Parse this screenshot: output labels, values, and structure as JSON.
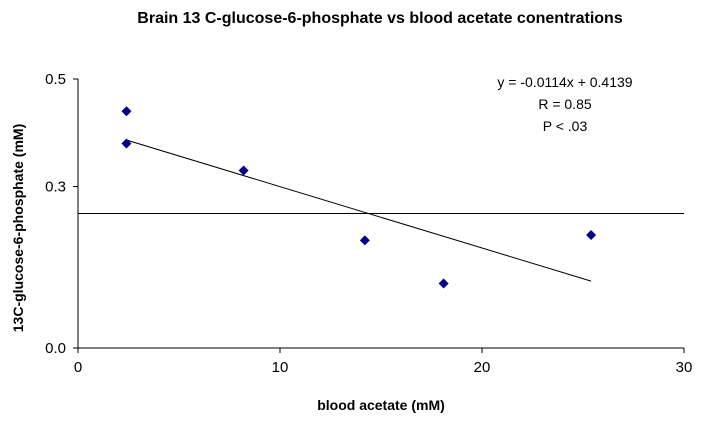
{
  "chart_data": {
    "type": "scatter",
    "title": "Brain 13 C-glucose-6-phosphate vs blood acetate conentrations",
    "xlabel": "blood acetate (mM)",
    "ylabel": "13C-glucose-6-phosphate (mM)",
    "xlim": [
      0,
      30
    ],
    "ylim": [
      0.0,
      0.5
    ],
    "x_ticks": [
      0,
      10,
      20,
      30
    ],
    "y_ticks": [
      0.0,
      0.3,
      0.5
    ],
    "x_tick_labels": [
      "0",
      "10",
      "20",
      "30"
    ],
    "y_tick_labels": [
      "0.0",
      "0.3",
      "0.5"
    ],
    "reference_line_y": 0.25,
    "points": [
      {
        "x": 2.4,
        "y": 0.44
      },
      {
        "x": 2.4,
        "y": 0.38
      },
      {
        "x": 8.2,
        "y": 0.33
      },
      {
        "x": 14.2,
        "y": 0.2
      },
      {
        "x": 18.1,
        "y": 0.12
      },
      {
        "x": 25.4,
        "y": 0.21
      }
    ],
    "trendline": {
      "slope": -0.0114,
      "intercept": 0.4139,
      "x_start": 2.4,
      "x_end": 25.4
    },
    "annotations": [
      "y = -0.0114x + 0.4139",
      "R = 0.85",
      "P < .03"
    ],
    "marker_color": "#00008b",
    "grid": false,
    "legend": "none"
  }
}
